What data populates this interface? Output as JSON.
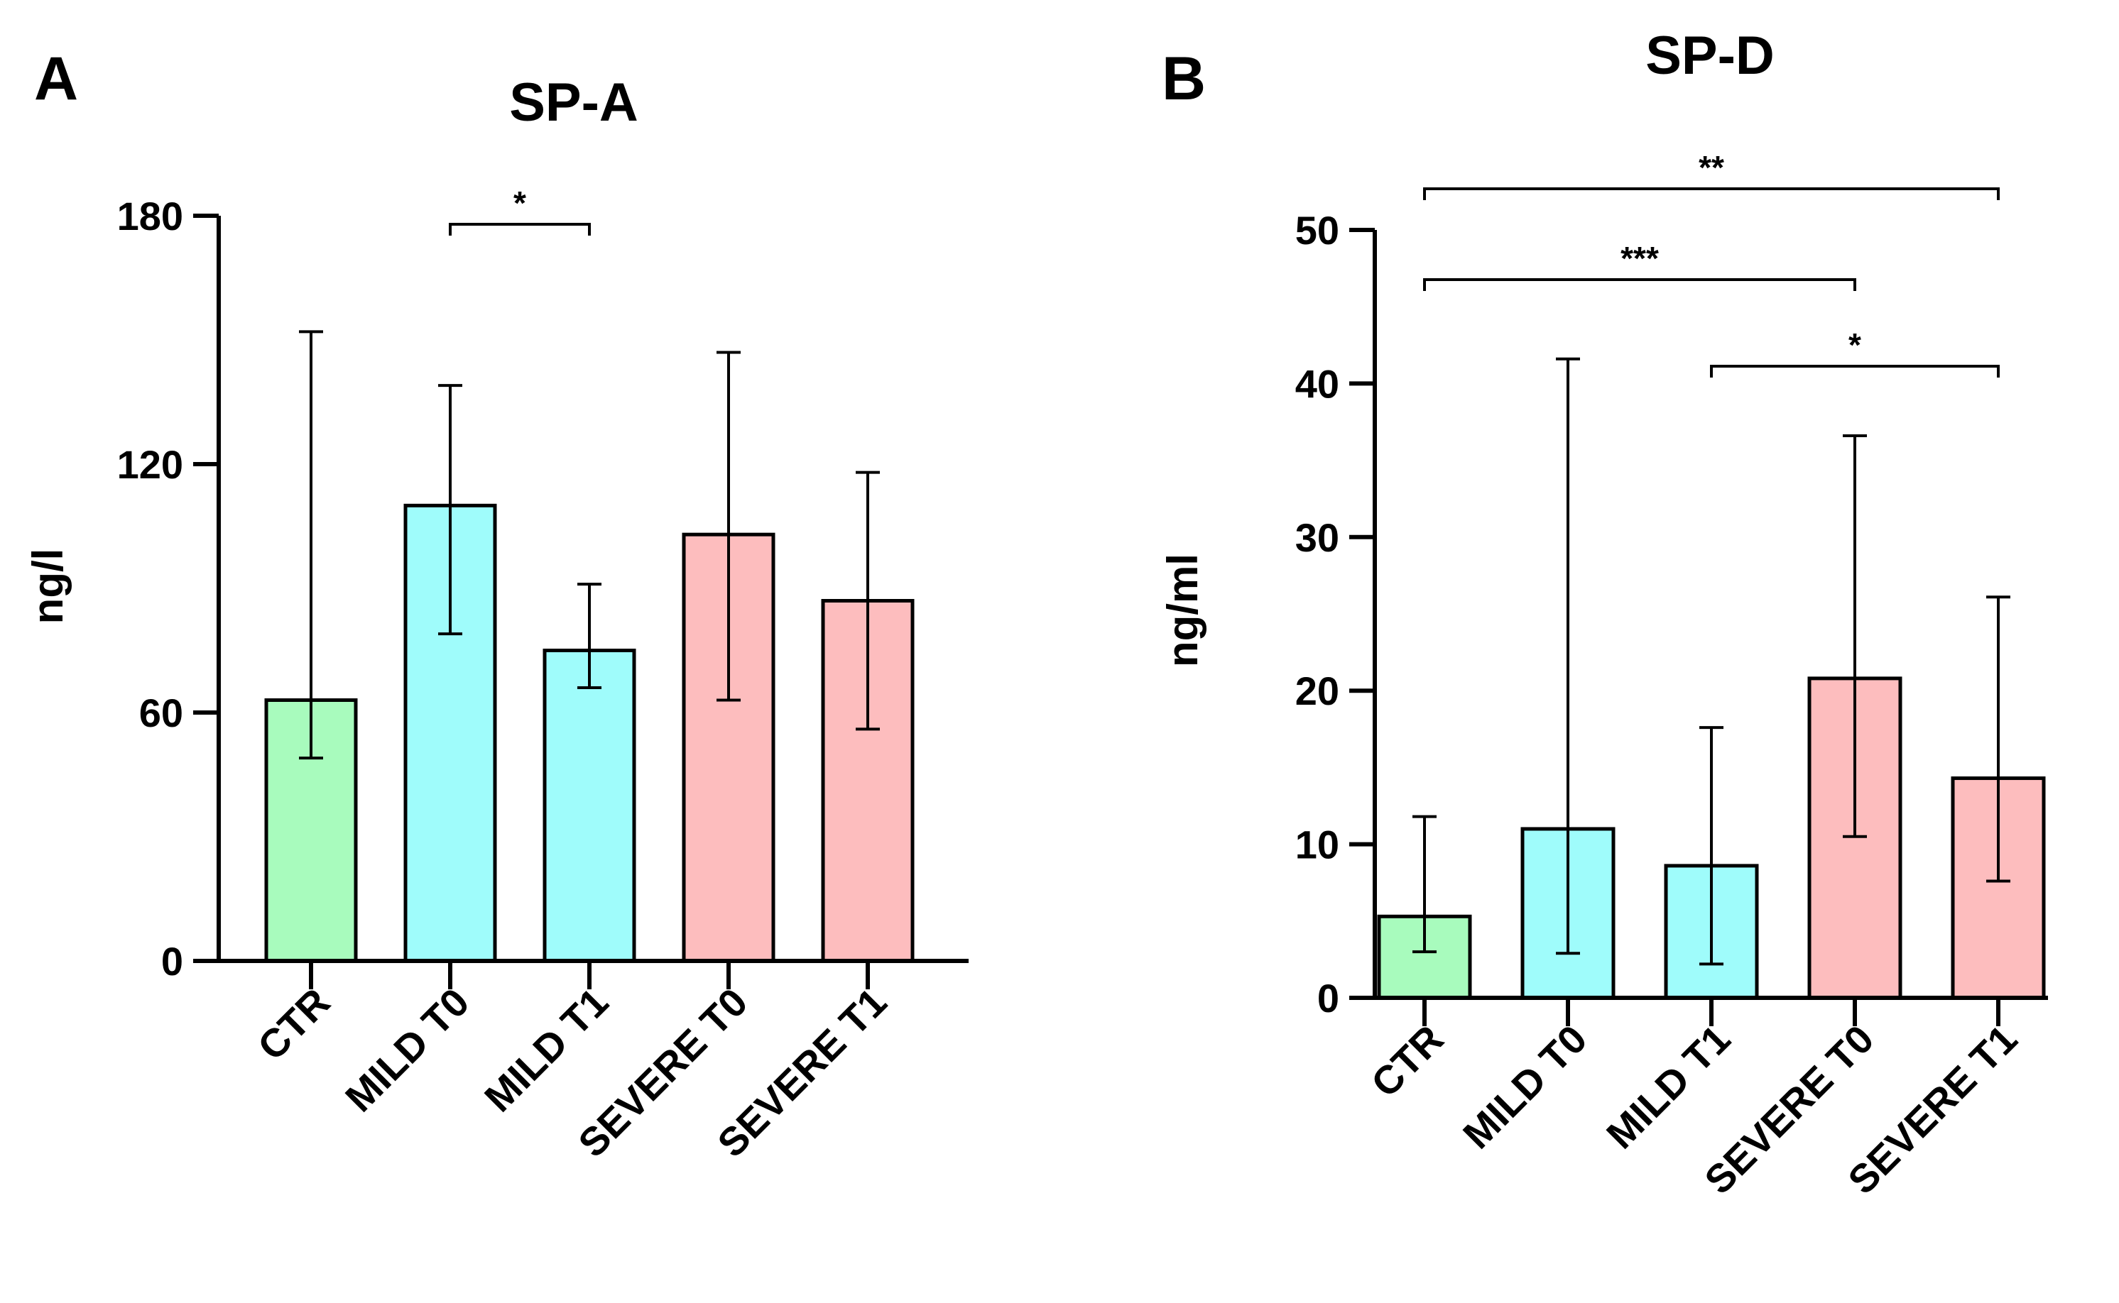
{
  "colors": {
    "ctr": "#a8fbbd",
    "mild": "#9ffcfb",
    "severe": "#fdbdbe",
    "axis": "#000000"
  },
  "chart_data": [
    {
      "panel_label": "A",
      "type": "bar",
      "title": "SP-A",
      "ylabel": "ng/l",
      "xlabel": "",
      "ylim": [
        0,
        180
      ],
      "yticks": [
        "0",
        "60",
        "120",
        "180"
      ],
      "categories": [
        "CTR",
        "MILD T0",
        "MILD T1",
        "SEVERE T0",
        "SEVERE T1"
      ],
      "values": [
        63,
        110,
        75,
        103,
        87
      ],
      "error_low": [
        49,
        79,
        66,
        63,
        56
      ],
      "error_high": [
        152,
        139,
        91,
        147,
        118
      ],
      "bar_color_keys": [
        "ctr",
        "mild",
        "mild",
        "severe",
        "severe"
      ],
      "significance": [
        {
          "from": 1,
          "to": 2,
          "label": "*"
        }
      ]
    },
    {
      "panel_label": "B",
      "type": "bar",
      "title": "SP-D",
      "ylabel": "ng/ml",
      "xlabel": "",
      "ylim": [
        0,
        50
      ],
      "yticks": [
        "0",
        "10",
        "20",
        "30",
        "40",
        "50"
      ],
      "categories": [
        "CTR",
        "MILD T0",
        "MILD T1",
        "SEVERE T0",
        "SEVERE T1"
      ],
      "values": [
        5.3,
        11.0,
        8.6,
        20.8,
        14.3
      ],
      "error_low": [
        3.0,
        2.9,
        2.2,
        10.5,
        7.6
      ],
      "error_high": [
        11.8,
        41.6,
        17.6,
        36.6,
        26.1
      ],
      "bar_color_keys": [
        "ctr",
        "mild",
        "mild",
        "severe",
        "severe"
      ],
      "significance": [
        {
          "from": 0,
          "to": 4,
          "label": "**"
        },
        {
          "from": 0,
          "to": 3,
          "label": "***"
        },
        {
          "from": 2,
          "to": 4,
          "label": "*"
        }
      ]
    }
  ]
}
